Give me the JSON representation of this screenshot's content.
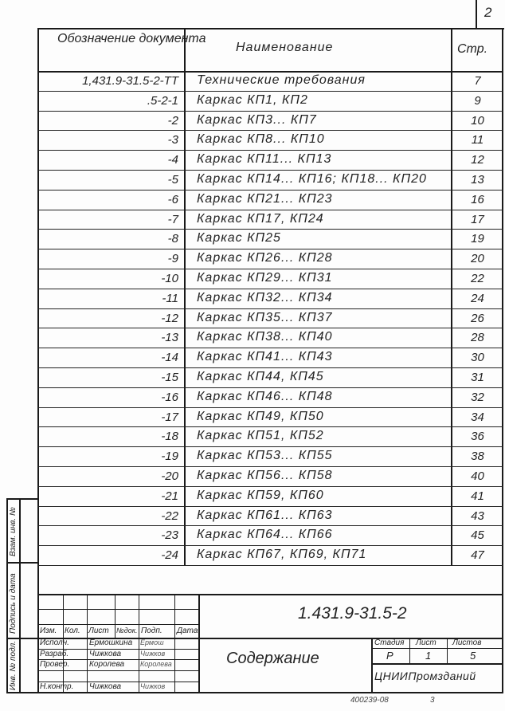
{
  "sheet_number": "2",
  "header": {
    "designation": "Обозначение документа",
    "name": "Наименование",
    "page": "Стр."
  },
  "rows": [
    {
      "designation": "1,431.9-31.5-2-ТТ",
      "name": "Технические требования",
      "page": "7"
    },
    {
      "designation": ".5-2-1",
      "name": "Каркас КП1, КП2",
      "page": "9"
    },
    {
      "designation": "-2",
      "name": "Каркас КП3... КП7",
      "page": "10"
    },
    {
      "designation": "-3",
      "name": "Каркас КП8... КП10",
      "page": "11"
    },
    {
      "designation": "-4",
      "name": "Каркас КП11... КП13",
      "page": "12"
    },
    {
      "designation": "-5",
      "name": "Каркас КП14... КП16; КП18... КП20",
      "page": "13"
    },
    {
      "designation": "-6",
      "name": "Каркас КП21... КП23",
      "page": "16"
    },
    {
      "designation": "-7",
      "name": "Каркас КП17, КП24",
      "page": "17"
    },
    {
      "designation": "-8",
      "name": "Каркас КП25",
      "page": "19"
    },
    {
      "designation": "-9",
      "name": "Каркас КП26... КП28",
      "page": "20"
    },
    {
      "designation": "-10",
      "name": "Каркас КП29... КП31",
      "page": "22"
    },
    {
      "designation": "-11",
      "name": "Каркас КП32... КП34",
      "page": "24"
    },
    {
      "designation": "-12",
      "name": "Каркас КП35... КП37",
      "page": "26"
    },
    {
      "designation": "-13",
      "name": "Каркас КП38... КП40",
      "page": "28"
    },
    {
      "designation": "-14",
      "name": "Каркас КП41... КП43",
      "page": "30"
    },
    {
      "designation": "-15",
      "name": "Каркас КП44, КП45",
      "page": "31"
    },
    {
      "designation": "-16",
      "name": "Каркас КП46... КП48",
      "page": "32"
    },
    {
      "designation": "-17",
      "name": "Каркас КП49, КП50",
      "page": "34"
    },
    {
      "designation": "-18",
      "name": "Каркас КП51, КП52",
      "page": "36"
    },
    {
      "designation": "-19",
      "name": "Каркас КП53... КП55",
      "page": "38"
    },
    {
      "designation": "-20",
      "name": "Каркас КП56... КП58",
      "page": "40"
    },
    {
      "designation": "-21",
      "name": "Каркас КП59, КП60",
      "page": "41"
    },
    {
      "designation": "-22",
      "name": "Каркас КП61... КП63",
      "page": "43"
    },
    {
      "designation": "-23",
      "name": "Каркас КП64... КП66",
      "page": "45"
    },
    {
      "designation": "-24",
      "name": "Каркас КП67, КП69, КП71",
      "page": "47"
    }
  ],
  "side_stamp": {
    "inv_orig": "Инв. № подл.",
    "sign_date": "Подпись и дата",
    "replace_inv": "Взам. инв. №"
  },
  "title_block": {
    "code": "1.431.9-31.5-2",
    "title": "Содержание",
    "columns": [
      "Изм.",
      "Кол.",
      "Лист",
      "№док.",
      "Подп.",
      "Дата"
    ],
    "roles": [
      {
        "role": "Исполн.",
        "name": "Ермошкина",
        "sign": "Ермош"
      },
      {
        "role": "Разраб.",
        "name": "Чижкова",
        "sign": "Чижков"
      },
      {
        "role": "Провер.",
        "name": "Королева",
        "sign": "Королева"
      },
      {
        "role": "",
        "name": "",
        "sign": ""
      },
      {
        "role": "Н.контр.",
        "name": "Чижкова",
        "sign": "Чижков"
      }
    ],
    "stage_label": "Стадия",
    "sheet_label": "Лист",
    "sheets_label": "Листов",
    "stage": "Р",
    "sheet": "1",
    "sheets": "5",
    "organization": "ЦНИИПромзданий"
  },
  "footer_code": "400239-08",
  "footer_num": "3"
}
